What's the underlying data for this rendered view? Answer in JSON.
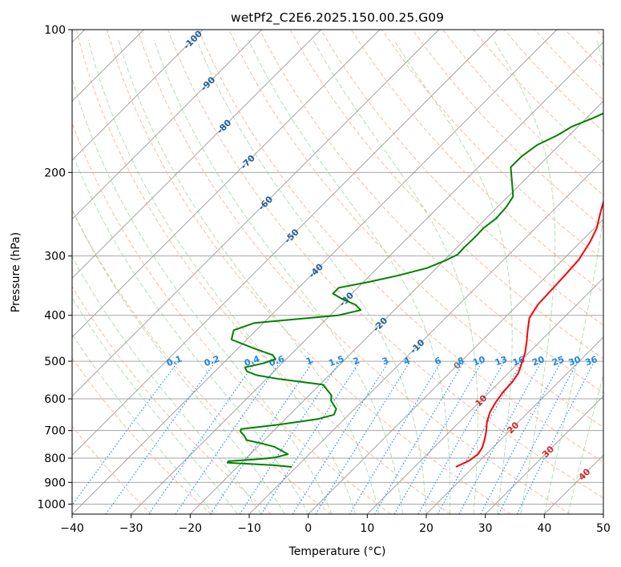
{
  "colors": {
    "temperature": "#ff0000",
    "dewpoint": "#008000",
    "isotherm": "#999999",
    "isobar": "#a6a6a6",
    "dry_adiabat": "#f4a582",
    "moist_adiabat": "#74c476",
    "mixing_ratio": "#1e88e5",
    "isotherm_label": "#1f5f9e",
    "labels_red": "#d62728",
    "label_grey": "#777777"
  },
  "chart_data": {
    "type": "line",
    "title": "wetPf2_C2E6.2025.150.00.25.G09",
    "xlabel": "Temperature (°C)",
    "ylabel": "Pressure (hPa)",
    "xlim": [
      -40,
      50
    ],
    "ylim": [
      1050,
      100
    ],
    "y_scale": "log",
    "grid": true,
    "skew_deg": 45,
    "xticks": [
      -40,
      -30,
      -20,
      -10,
      0,
      10,
      20,
      30,
      40,
      50
    ],
    "xtick_labels": [
      "−40",
      "−30",
      "−20",
      "−10",
      "0",
      "10",
      "20",
      "30",
      "40",
      "50"
    ],
    "yticks": [
      100,
      200,
      300,
      400,
      500,
      600,
      700,
      800,
      900,
      1000
    ],
    "ytick_labels": [
      "100",
      "200",
      "300",
      "400",
      "500",
      "600",
      "700",
      "800",
      "900",
      "1000"
    ],
    "isotherm_labels": [
      {
        "t": -100,
        "p": 105,
        "text": "-100"
      },
      {
        "t": -90,
        "p": 130,
        "text": "-90"
      },
      {
        "t": -80,
        "p": 160,
        "text": "-80"
      },
      {
        "t": -70,
        "p": 190,
        "text": "-70"
      },
      {
        "t": -60,
        "p": 232,
        "text": "-60"
      },
      {
        "t": -50,
        "p": 272,
        "text": "-50"
      },
      {
        "t": -40,
        "p": 322,
        "text": "-40"
      },
      {
        "t": -30,
        "p": 370,
        "text": "-30"
      },
      {
        "t": -20,
        "p": 418,
        "text": "-20"
      },
      {
        "t": -10,
        "p": 465,
        "text": "-10"
      },
      {
        "t": 0,
        "p": 510,
        "text": "0"
      },
      {
        "t": 10,
        "p": 605,
        "text": "10"
      },
      {
        "t": 20,
        "p": 690,
        "text": "20"
      },
      {
        "t": 30,
        "p": 775,
        "text": "30"
      },
      {
        "t": 40,
        "p": 865,
        "text": "40"
      }
    ],
    "mixing_ratio_labels": [
      "0.1",
      "0.2",
      "0.4",
      "0.6",
      "1",
      "1.5",
      "2",
      "3",
      "4",
      "6",
      "8",
      "10",
      "13",
      "16",
      "20",
      "25",
      "30",
      "36"
    ],
    "mixing_ratio_values": [
      0.1,
      0.2,
      0.4,
      0.6,
      1,
      1.5,
      2,
      3,
      4,
      6,
      8,
      10,
      13,
      16,
      20,
      25,
      30,
      36
    ],
    "series": [
      {
        "key": "temperature",
        "p": [
          835,
          810,
          785,
          760,
          730,
          700,
          670,
          640,
          610,
          580,
          555,
          530,
          505,
          480,
          455,
          430,
          405,
          380,
          355,
          330,
          305,
          280,
          262,
          245,
          230,
          215,
          200,
          185,
          172,
          160,
          150,
          140,
          130,
          122,
          115,
          108,
          102,
          100
        ],
        "t": [
          17,
          18.2,
          18.6,
          18.2,
          17.2,
          16.0,
          14.6,
          13.5,
          12.8,
          12.3,
          12.2,
          11.7,
          10.6,
          9.4,
          7.8,
          6.0,
          4.2,
          3.4,
          3.2,
          3.0,
          2.7,
          1.6,
          0.4,
          -1.4,
          -3.0,
          -4.8,
          -5.8,
          -5.6,
          -5.0,
          -4.9,
          -4.6,
          -4.2,
          -3.7,
          -2.6,
          -1.4,
          -0.1,
          0.8,
          1.1
        ]
      },
      {
        "key": "dewpoint",
        "p": [
          835,
          828,
          818,
          812,
          805,
          798,
          785,
          772,
          757,
          745,
          733,
          718,
          703,
          695,
          680,
          662,
          648,
          630,
          618,
          605,
          590,
          575,
          560,
          545,
          535,
          525,
          515,
          505,
          495,
          485,
          470,
          450,
          430,
          415,
          400,
          390,
          380,
          370,
          360,
          350,
          340,
          330,
          318,
          307,
          298,
          287,
          275,
          262,
          250,
          237,
          225,
          215,
          205,
          195,
          185,
          175,
          167,
          160,
          154,
          148,
          142,
          136,
          130,
          125,
          121,
          117,
          113,
          110,
          107,
          104,
          102,
          100
        ],
        "t": [
          -10.8,
          -14.2,
          -22.4,
          -22.5,
          -18.2,
          -15.3,
          -13.6,
          -15.2,
          -17.2,
          -19.9,
          -23.0,
          -24.1,
          -25.5,
          -25.8,
          -20.2,
          -14.5,
          -12.5,
          -13.1,
          -14.2,
          -15.4,
          -16.2,
          -17.8,
          -19.5,
          -27.8,
          -32.3,
          -34.6,
          -35.6,
          -33.2,
          -31.8,
          -33.0,
          -37.2,
          -42.6,
          -43.8,
          -41.5,
          -28.6,
          -25.7,
          -27.5,
          -30.6,
          -33.2,
          -33.2,
          -29.0,
          -25.3,
          -21.6,
          -19.8,
          -18.7,
          -18.8,
          -18.7,
          -18.8,
          -18.3,
          -18.5,
          -19.1,
          -20.8,
          -22.6,
          -24.5,
          -24.5,
          -23.8,
          -22.0,
          -21.0,
          -19.0,
          -17.3,
          -15.0,
          -13.0,
          -11.5,
          -11.0,
          -11.6,
          -11.0,
          -10.1,
          -9.1,
          -7.9,
          -6.7,
          -5.6,
          -4.8
        ]
      }
    ]
  }
}
